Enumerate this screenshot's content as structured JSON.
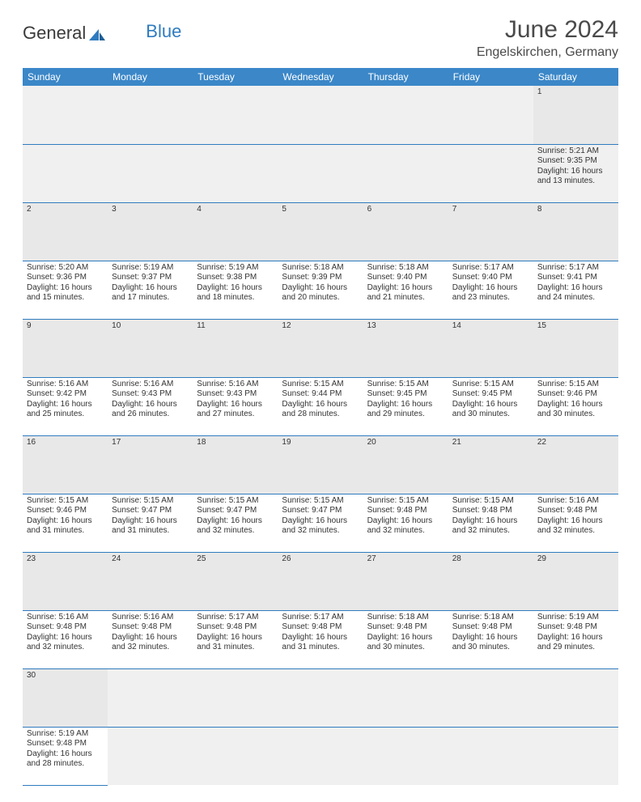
{
  "logo": {
    "text1": "General",
    "text2": "Blue"
  },
  "title": "June 2024",
  "location": "Engelskirchen, Germany",
  "header_bg": "#3b87c8",
  "header_fg": "#ffffff",
  "rule_color": "#2f7bbf",
  "daynum_bg": "#e8e8e8",
  "text_color": "#333333",
  "day_fontsize": 10,
  "header_fontsize": 12,
  "title_fontsize": 30,
  "location_fontsize": 16,
  "columns": [
    "Sunday",
    "Monday",
    "Tuesday",
    "Wednesday",
    "Thursday",
    "Friday",
    "Saturday"
  ],
  "weeks": [
    [
      null,
      null,
      null,
      null,
      null,
      null,
      {
        "n": "1",
        "sr": "5:21 AM",
        "ss": "9:35 PM",
        "dl": "16 hours and 13 minutes."
      }
    ],
    [
      {
        "n": "2",
        "sr": "5:20 AM",
        "ss": "9:36 PM",
        "dl": "16 hours and 15 minutes."
      },
      {
        "n": "3",
        "sr": "5:19 AM",
        "ss": "9:37 PM",
        "dl": "16 hours and 17 minutes."
      },
      {
        "n": "4",
        "sr": "5:19 AM",
        "ss": "9:38 PM",
        "dl": "16 hours and 18 minutes."
      },
      {
        "n": "5",
        "sr": "5:18 AM",
        "ss": "9:39 PM",
        "dl": "16 hours and 20 minutes."
      },
      {
        "n": "6",
        "sr": "5:18 AM",
        "ss": "9:40 PM",
        "dl": "16 hours and 21 minutes."
      },
      {
        "n": "7",
        "sr": "5:17 AM",
        "ss": "9:40 PM",
        "dl": "16 hours and 23 minutes."
      },
      {
        "n": "8",
        "sr": "5:17 AM",
        "ss": "9:41 PM",
        "dl": "16 hours and 24 minutes."
      }
    ],
    [
      {
        "n": "9",
        "sr": "5:16 AM",
        "ss": "9:42 PM",
        "dl": "16 hours and 25 minutes."
      },
      {
        "n": "10",
        "sr": "5:16 AM",
        "ss": "9:43 PM",
        "dl": "16 hours and 26 minutes."
      },
      {
        "n": "11",
        "sr": "5:16 AM",
        "ss": "9:43 PM",
        "dl": "16 hours and 27 minutes."
      },
      {
        "n": "12",
        "sr": "5:15 AM",
        "ss": "9:44 PM",
        "dl": "16 hours and 28 minutes."
      },
      {
        "n": "13",
        "sr": "5:15 AM",
        "ss": "9:45 PM",
        "dl": "16 hours and 29 minutes."
      },
      {
        "n": "14",
        "sr": "5:15 AM",
        "ss": "9:45 PM",
        "dl": "16 hours and 30 minutes."
      },
      {
        "n": "15",
        "sr": "5:15 AM",
        "ss": "9:46 PM",
        "dl": "16 hours and 30 minutes."
      }
    ],
    [
      {
        "n": "16",
        "sr": "5:15 AM",
        "ss": "9:46 PM",
        "dl": "16 hours and 31 minutes."
      },
      {
        "n": "17",
        "sr": "5:15 AM",
        "ss": "9:47 PM",
        "dl": "16 hours and 31 minutes."
      },
      {
        "n": "18",
        "sr": "5:15 AM",
        "ss": "9:47 PM",
        "dl": "16 hours and 32 minutes."
      },
      {
        "n": "19",
        "sr": "5:15 AM",
        "ss": "9:47 PM",
        "dl": "16 hours and 32 minutes."
      },
      {
        "n": "20",
        "sr": "5:15 AM",
        "ss": "9:48 PM",
        "dl": "16 hours and 32 minutes."
      },
      {
        "n": "21",
        "sr": "5:15 AM",
        "ss": "9:48 PM",
        "dl": "16 hours and 32 minutes."
      },
      {
        "n": "22",
        "sr": "5:16 AM",
        "ss": "9:48 PM",
        "dl": "16 hours and 32 minutes."
      }
    ],
    [
      {
        "n": "23",
        "sr": "5:16 AM",
        "ss": "9:48 PM",
        "dl": "16 hours and 32 minutes."
      },
      {
        "n": "24",
        "sr": "5:16 AM",
        "ss": "9:48 PM",
        "dl": "16 hours and 32 minutes."
      },
      {
        "n": "25",
        "sr": "5:17 AM",
        "ss": "9:48 PM",
        "dl": "16 hours and 31 minutes."
      },
      {
        "n": "26",
        "sr": "5:17 AM",
        "ss": "9:48 PM",
        "dl": "16 hours and 31 minutes."
      },
      {
        "n": "27",
        "sr": "5:18 AM",
        "ss": "9:48 PM",
        "dl": "16 hours and 30 minutes."
      },
      {
        "n": "28",
        "sr": "5:18 AM",
        "ss": "9:48 PM",
        "dl": "16 hours and 30 minutes."
      },
      {
        "n": "29",
        "sr": "5:19 AM",
        "ss": "9:48 PM",
        "dl": "16 hours and 29 minutes."
      }
    ],
    [
      {
        "n": "30",
        "sr": "5:19 AM",
        "ss": "9:48 PM",
        "dl": "16 hours and 28 minutes."
      },
      null,
      null,
      null,
      null,
      null,
      null
    ]
  ],
  "labels": {
    "sunrise": "Sunrise:",
    "sunset": "Sunset:",
    "daylight": "Daylight:"
  }
}
